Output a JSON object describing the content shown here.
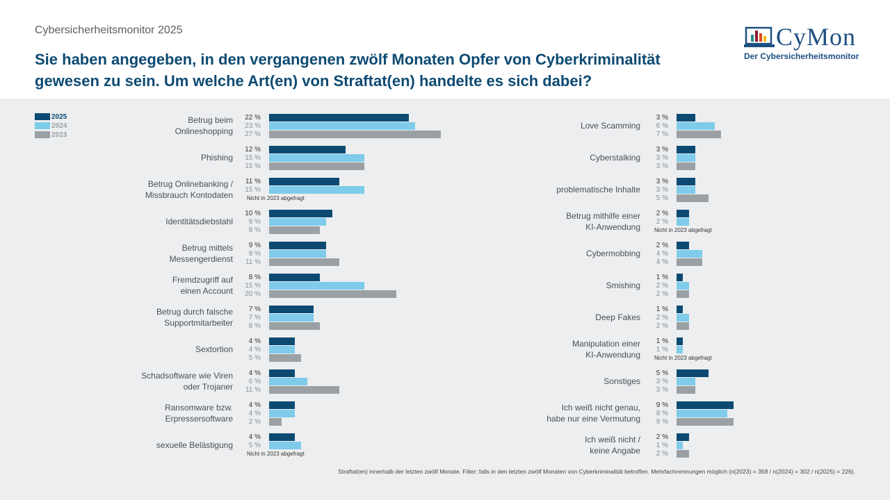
{
  "header": {
    "supertitle": "Cybersicherheitsmonitor 2025",
    "title": "Sie haben angegeben, in den vergangenen zwölf Monaten Opfer von Cyberkriminalität gewesen zu sein. Um welche Art(en) von Straftat(en) handelte es sich dabei?",
    "logo_text": "CyMon",
    "logo_subtitle": "Der Cybersicherheitsmonitor"
  },
  "colors": {
    "2025": "#0d4a72",
    "2024": "#7fcbea",
    "2023": "#9aa0a3"
  },
  "footnote": "Straftat(en) innerhalb der letzten zwölf Monate. Filter: falls in den letzten zwölf Monaten von Cyberkriminalität betroffen. Mehrfachnennungen möglich (n(2023) = 358 / n(2024) = 302 / n(2025) = 226).",
  "chart_data": {
    "type": "bar",
    "orientation": "horizontal",
    "unit": "%",
    "legend": [
      "2025",
      "2024",
      "2023"
    ],
    "not_asked_label": "Nicht  in 2023 abgefragt",
    "panels": [
      {
        "categories": [
          "Betrug beim\nOnlineshopping",
          "Phishing",
          "Betrug Onlinebanking /\nMissbrauch Kontodaten",
          "Identitätsdiebstahl",
          "Betrug mittels\nMessengerdienst",
          "Fremdzugriff auf\neinen Account",
          "Betrug durch falsche\nSupportmitarbeiter",
          "Sextortion",
          "Schadsoftware wie Viren\noder Trojaner",
          "Ransomware bzw.\nErpressersoftware",
          "sexuelle Belästigung"
        ],
        "series": [
          {
            "name": "2025",
            "values": [
              22,
              12,
              11,
              10,
              9,
              8,
              7,
              4,
              4,
              4,
              4
            ]
          },
          {
            "name": "2024",
            "values": [
              23,
              15,
              15,
              9,
              9,
              15,
              7,
              4,
              6,
              4,
              5
            ]
          },
          {
            "name": "2023",
            "values": [
              27,
              15,
              null,
              8,
              11,
              20,
              8,
              5,
              11,
              2,
              null
            ]
          }
        ]
      },
      {
        "categories": [
          "Love Scamming",
          "Cyberstalking",
          "problematische Inhalte",
          "Betrug mithilfe einer\nKI-Anwendung",
          "Cybermobbing",
          "Smishing",
          "Deep Fakes",
          "Manipulation einer\nKI-Anwendung",
          "Sonstiges",
          "Ich weiß nicht genau,\nhabe nur eine Vermutung",
          "Ich weiß nicht /\nkeine Angabe"
        ],
        "series": [
          {
            "name": "2025",
            "values": [
              3,
              3,
              3,
              2,
              2,
              1,
              1,
              1,
              5,
              9,
              2
            ]
          },
          {
            "name": "2024",
            "values": [
              6,
              3,
              3,
              2,
              4,
              2,
              2,
              1,
              3,
              8,
              1
            ]
          },
          {
            "name": "2023",
            "values": [
              7,
              3,
              5,
              null,
              4,
              2,
              2,
              null,
              3,
              9,
              2
            ]
          }
        ]
      }
    ]
  }
}
